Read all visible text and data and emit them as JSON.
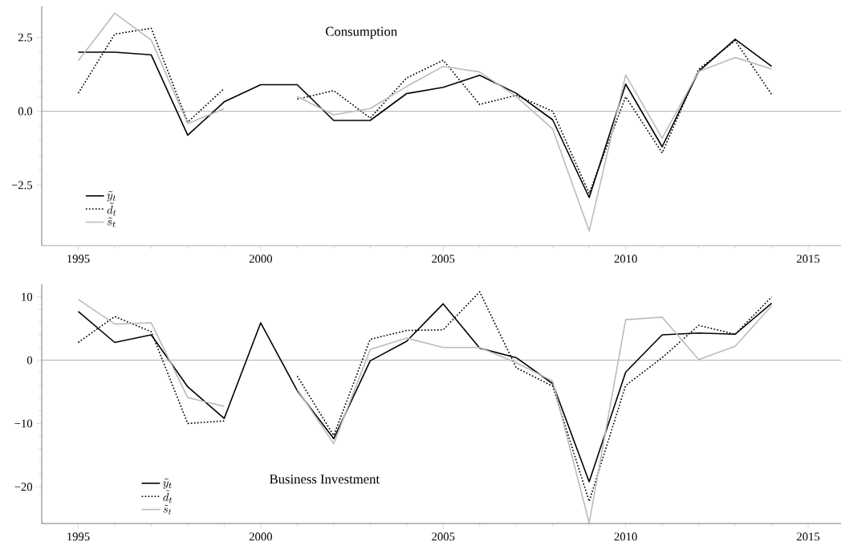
{
  "chart_data": [
    {
      "type": "line",
      "title": "Consumption",
      "x": [
        1995,
        1996,
        1997,
        1998,
        1999,
        2000,
        2001,
        2002,
        2003,
        2004,
        2005,
        2006,
        2007,
        2008,
        2009,
        2010,
        2011,
        2012,
        2013,
        2014
      ],
      "xlim": [
        1994,
        2015.9
      ],
      "xticks": [
        1995,
        2000,
        2005,
        2010,
        2015
      ],
      "ylim": [
        -4.55,
        3.55
      ],
      "yticks": [
        {
          "value": -2.5,
          "label": "−2.5"
        },
        {
          "value": 0,
          "label": "0.0"
        },
        {
          "value": 2.5,
          "label": "2.5"
        }
      ],
      "legend": "bottom left",
      "grid": false,
      "ref_lines": [
        {
          "axis": "y",
          "value": 0,
          "color": "#999999"
        }
      ],
      "series": [
        {
          "name": "\\tilde{y}_t",
          "color": "#000000",
          "line_style": "solid",
          "values": [
            2.0,
            2.0,
            1.91,
            -0.81,
            0.32,
            0.9,
            0.9,
            -0.31,
            -0.31,
            0.6,
            0.81,
            1.22,
            0.61,
            -0.29,
            -2.92,
            0.92,
            -1.2,
            1.35,
            2.44,
            1.52
          ]
        },
        {
          "name": "\\tilde{d}_t",
          "color": "#000000",
          "line_style": "dotted",
          "values": [
            0.61,
            2.61,
            2.81,
            -0.37,
            0.77,
            null,
            0.41,
            0.7,
            -0.23,
            1.13,
            1.73,
            0.23,
            0.54,
            0.0,
            -2.78,
            0.49,
            -1.41,
            1.42,
            2.39,
            0.57
          ]
        },
        {
          "name": "\\tilde{s}_t",
          "color": "#bbbbbb",
          "line_style": "solid",
          "values": [
            1.71,
            3.32,
            2.41,
            -0.42,
            0.09,
            null,
            0.5,
            -0.12,
            0.09,
            0.84,
            1.52,
            1.33,
            0.5,
            -0.6,
            -4.05,
            1.23,
            -0.91,
            1.35,
            1.82,
            1.43
          ]
        }
      ]
    },
    {
      "type": "line",
      "title": "Business Investment",
      "x": [
        1995,
        1996,
        1997,
        1998,
        1999,
        2000,
        2001,
        2002,
        2003,
        2004,
        2005,
        2006,
        2007,
        2008,
        2009,
        2010,
        2011,
        2012,
        2013,
        2014
      ],
      "xlim": [
        1994,
        2015.9
      ],
      "xticks": [
        1995,
        2000,
        2005,
        2010,
        2015
      ],
      "ylim": [
        -25.8,
        12
      ],
      "yticks": [
        {
          "value": -20,
          "label": "−20"
        },
        {
          "value": -10,
          "label": "−10"
        },
        0,
        10
      ],
      "legend": "bottom left",
      "grid": false,
      "ref_lines": [
        {
          "axis": "y",
          "value": 0,
          "color": "#999999"
        }
      ],
      "series": [
        {
          "name": "\\tilde{y}_t",
          "color": "#000000",
          "line_style": "solid",
          "values": [
            7.7,
            2.8,
            4.0,
            -4.2,
            -9.2,
            5.9,
            -4.8,
            -12.4,
            -0.1,
            3.0,
            8.9,
            1.9,
            0.4,
            -3.7,
            -19.2,
            -1.9,
            4.0,
            4.3,
            4.1,
            9.0
          ]
        },
        {
          "name": "\\tilde{d}_t",
          "color": "#000000",
          "line_style": "dotted",
          "values": [
            2.8,
            6.9,
            4.5,
            -10.0,
            -9.6,
            null,
            -2.5,
            -11.9,
            3.3,
            4.7,
            4.8,
            10.8,
            -1.2,
            -4.1,
            -22.3,
            -4.0,
            0.4,
            5.5,
            4.1,
            10.0
          ]
        },
        {
          "name": "\\tilde{s}_t",
          "color": "#bbbbbb",
          "line_style": "solid",
          "values": [
            9.6,
            5.7,
            5.9,
            -5.9,
            -7.3,
            null,
            -4.6,
            -13.2,
            1.7,
            3.5,
            2.0,
            2.0,
            -0.4,
            -3.3,
            -25.7,
            6.4,
            6.8,
            0.1,
            2.2,
            8.6
          ]
        }
      ]
    }
  ]
}
